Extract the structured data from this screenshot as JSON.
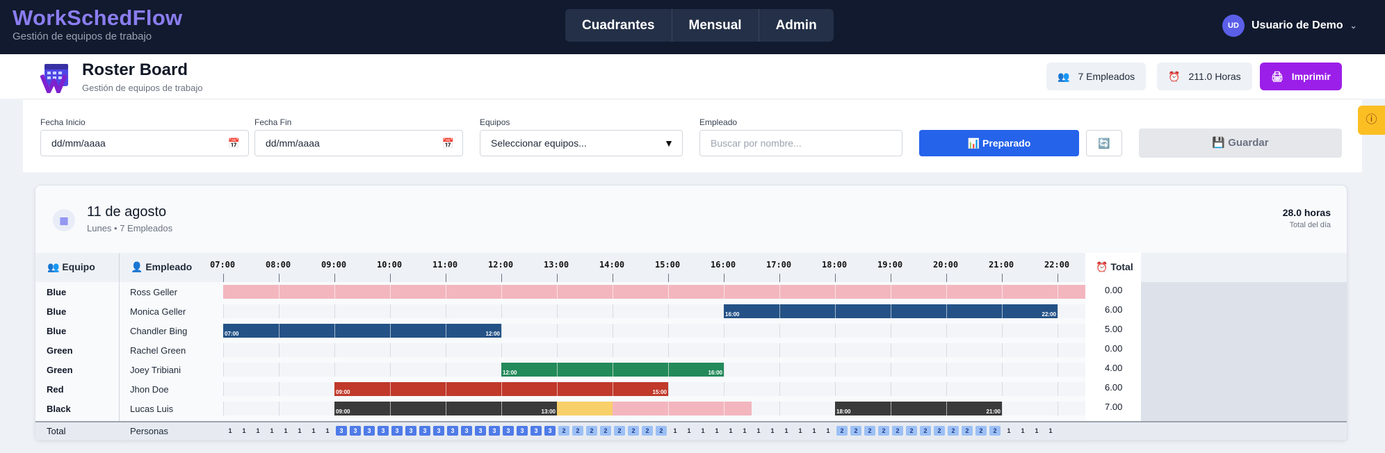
{
  "app": {
    "title": "WorkSchedFlow",
    "subtitle": "Gestión de equipos de trabajo"
  },
  "nav": [
    "Cuadrantes",
    "Mensual",
    "Admin"
  ],
  "user": {
    "initials": "UD",
    "name": "Usuario de Demo"
  },
  "page": {
    "title": "Roster Board",
    "subtitle": "Gestión de equipos de trabajo",
    "employees_pill": "7 Empleados",
    "hours_pill": "211.0 Horas",
    "print": "Imprimir"
  },
  "filters": {
    "start_label": "Fecha Inicio",
    "start_value": "dd/mm/aaaa",
    "end_label": "Fecha Fin",
    "end_value": "dd/mm/aaaa",
    "teams_label": "Equipos",
    "teams_value": "Seleccionar equipos...",
    "employee_label": "Empleado",
    "employee_placeholder": "Buscar por nombre...",
    "prepared": "Preparado",
    "save": "Guardar"
  },
  "day": {
    "title": "11 de agosto",
    "sub": "Lunes • 7 Empleados",
    "hours": "28.0 horas",
    "hours_sub": "Total del día"
  },
  "grid": {
    "team_header": "Equipo",
    "employee_header": "Empleado",
    "total_header": "Total",
    "footer_label": "Total",
    "footer_sub": "Personas",
    "hours": [
      "07:00",
      "08:00",
      "09:00",
      "10:00",
      "11:00",
      "12:00",
      "13:00",
      "14:00",
      "15:00",
      "16:00",
      "17:00",
      "18:00",
      "19:00",
      "20:00",
      "21:00",
      "22:00"
    ],
    "rows": [
      {
        "team": "Blue",
        "employee": "Ross Geller",
        "total": "0.00",
        "segments": [
          {
            "start": 7,
            "end": 22.5,
            "color": "#f3b6bf",
            "labels": [
              "",
              ""
            ]
          }
        ]
      },
      {
        "team": "Blue",
        "employee": "Monica Geller",
        "total": "6.00",
        "segments": [
          {
            "start": 16,
            "end": 22,
            "color": "#245286",
            "labels": [
              "16:00",
              "22:00"
            ]
          }
        ]
      },
      {
        "team": "Blue",
        "employee": "Chandler Bing",
        "total": "5.00",
        "segments": [
          {
            "start": 7,
            "end": 12,
            "color": "#245286",
            "labels": [
              "07:00",
              "12:00"
            ]
          }
        ]
      },
      {
        "team": "Green",
        "employee": "Rachel Green",
        "total": "0.00",
        "segments": []
      },
      {
        "team": "Green",
        "employee": "Joey Tribiani",
        "total": "4.00",
        "segments": [
          {
            "start": 12,
            "end": 16,
            "color": "#238a5a",
            "labels": [
              "12:00",
              "16:00"
            ]
          }
        ]
      },
      {
        "team": "Red",
        "employee": "Jhon Doe",
        "total": "6.00",
        "segments": [
          {
            "start": 9,
            "end": 15,
            "color": "#c0392b",
            "labels": [
              "09:00",
              "15:00"
            ]
          }
        ]
      },
      {
        "team": "Black",
        "employee": "Lucas Luis",
        "total": "7.00",
        "segments": [
          {
            "start": 9,
            "end": 13,
            "color": "#3a3a3a",
            "labels": [
              "09:00",
              "13:00"
            ]
          },
          {
            "start": 13,
            "end": 14,
            "color": "#f8d06a",
            "labels": [
              "",
              ""
            ]
          },
          {
            "start": 14,
            "end": 16.5,
            "color": "#f3b6bf",
            "labels": [
              "",
              ""
            ]
          },
          {
            "start": 18,
            "end": 21,
            "color": "#3a3a3a",
            "labels": [
              "18:00",
              "21:00"
            ]
          }
        ]
      }
    ],
    "counts": [
      1,
      1,
      1,
      1,
      1,
      1,
      1,
      1,
      3,
      3,
      3,
      3,
      3,
      3,
      3,
      3,
      3,
      3,
      3,
      3,
      3,
      3,
      3,
      3,
      2,
      2,
      2,
      2,
      2,
      2,
      2,
      2,
      1,
      1,
      1,
      1,
      1,
      1,
      1,
      1,
      1,
      1,
      1,
      1,
      2,
      2,
      2,
      2,
      2,
      2,
      2,
      2,
      2,
      2,
      2,
      2,
      1,
      1,
      1,
      1
    ]
  }
}
